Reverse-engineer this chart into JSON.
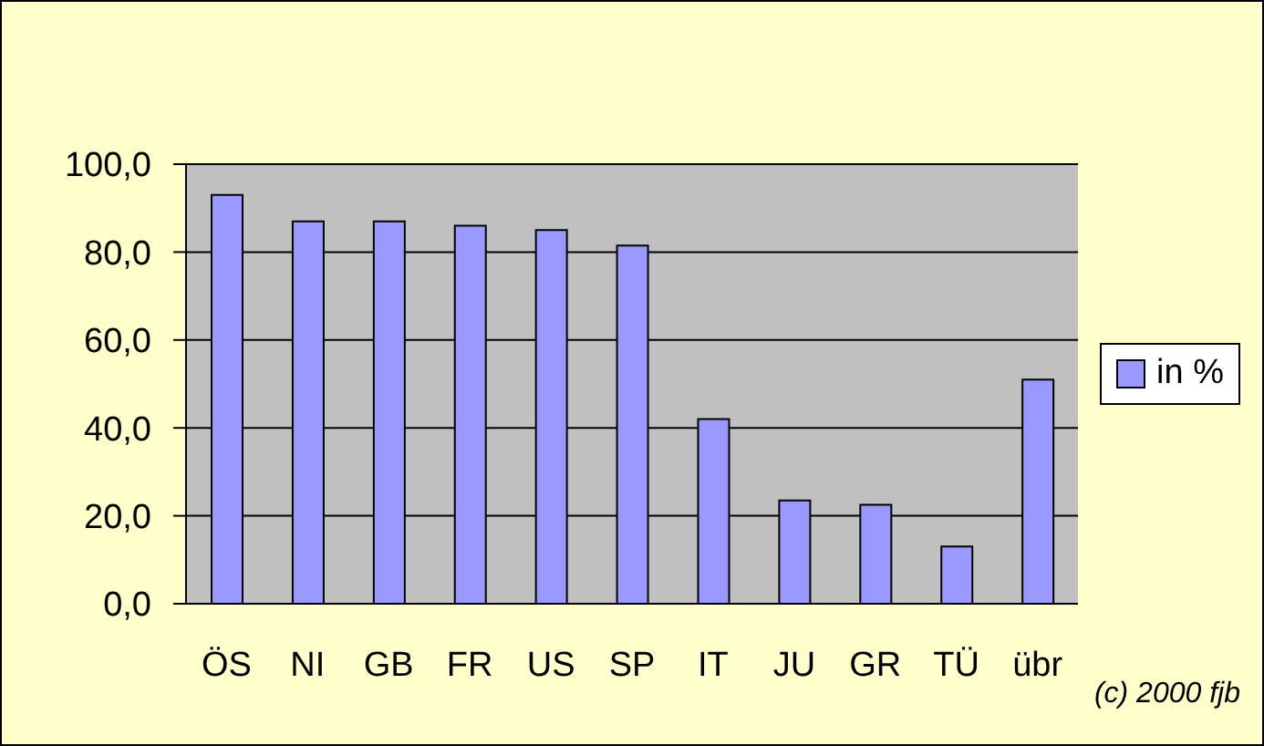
{
  "chart_data": {
    "type": "bar",
    "categories": [
      "ÖS",
      "NI",
      "GB",
      "FR",
      "US",
      "SP",
      "IT",
      "JU",
      "GR",
      "TÜ",
      "übr"
    ],
    "series": [
      {
        "name": "in %",
        "color": "#9999ff",
        "values": [
          93,
          87,
          87,
          86,
          85,
          81.5,
          42,
          23.5,
          22.5,
          13,
          51
        ]
      }
    ],
    "ylim": [
      0,
      100
    ],
    "yticks": [
      {
        "value": 0,
        "label": "0,0"
      },
      {
        "value": 20,
        "label": "20,0"
      },
      {
        "value": 40,
        "label": "40,0"
      },
      {
        "value": 60,
        "label": "60,0"
      },
      {
        "value": 80,
        "label": "80,0"
      },
      {
        "value": 100,
        "label": "100,0"
      }
    ],
    "grid": "y",
    "legend": "right",
    "annotations": [
      "(c) 2000 fjb"
    ]
  }
}
